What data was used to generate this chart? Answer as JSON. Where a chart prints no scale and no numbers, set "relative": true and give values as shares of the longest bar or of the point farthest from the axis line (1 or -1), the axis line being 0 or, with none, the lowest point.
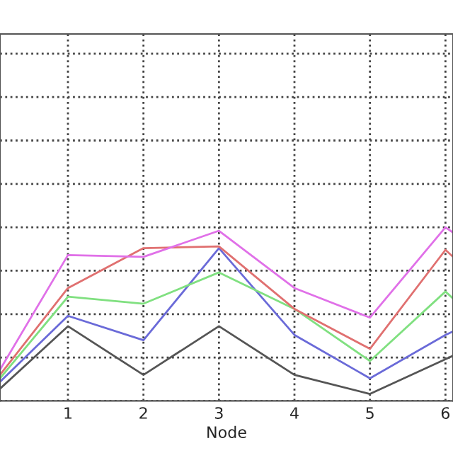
{
  "chart_data": {
    "type": "line",
    "xlabel": "Node",
    "relative": true,
    "x": [
      0.1,
      1,
      2,
      3,
      4,
      5,
      6,
      6.1
    ],
    "xlim": [
      0.1,
      6.1
    ],
    "xticks": [
      1,
      2,
      3,
      4,
      5,
      6
    ],
    "grid": true,
    "line_style": "solid",
    "series": [
      {
        "color": "#555555",
        "values": [
          0.07,
          0.43,
          0.15,
          0.43,
          0.15,
          0.04,
          0.24,
          0.26
        ]
      },
      {
        "color": "#6a6ad8",
        "values": [
          0.11,
          0.49,
          0.35,
          0.88,
          0.38,
          0.13,
          0.38,
          0.4
        ]
      },
      {
        "color": "#80e080",
        "values": [
          0.13,
          0.6,
          0.56,
          0.74,
          0.53,
          0.23,
          0.63,
          0.59
        ]
      },
      {
        "color": "#e07070",
        "values": [
          0.15,
          0.65,
          0.88,
          0.89,
          0.53,
          0.3,
          0.87,
          0.83
        ]
      },
      {
        "color": "#e070e8",
        "values": [
          0.18,
          0.84,
          0.83,
          0.98,
          0.65,
          0.48,
          1,
          0.97
        ]
      }
    ]
  }
}
